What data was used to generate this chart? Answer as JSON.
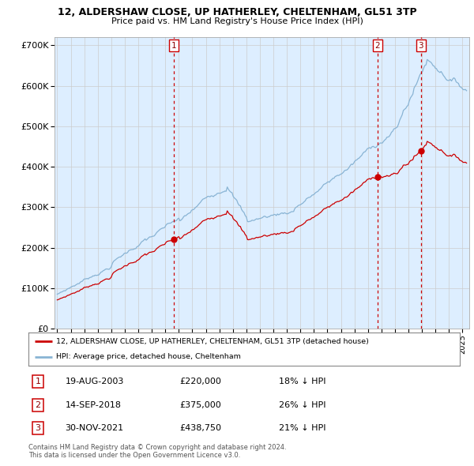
{
  "title_line1": "12, ALDERSHAW CLOSE, UP HATHERLEY, CHELTENHAM, GL51 3TP",
  "title_line2": "Price paid vs. HM Land Registry's House Price Index (HPI)",
  "legend_label_red": "12, ALDERSHAW CLOSE, UP HATHERLEY, CHELTENHAM, GL51 3TP (detached house)",
  "legend_label_blue": "HPI: Average price, detached house, Cheltenham",
  "sales": [
    {
      "label": "1",
      "date": "19-AUG-2003",
      "price": 220000,
      "hpi_pct": "18% ↓ HPI",
      "x_year": 2003.63
    },
    {
      "label": "2",
      "date": "14-SEP-2018",
      "price": 375000,
      "hpi_pct": "26% ↓ HPI",
      "x_year": 2018.71
    },
    {
      "label": "3",
      "date": "30-NOV-2021",
      "price": 438750,
      "hpi_pct": "21% ↓ HPI",
      "x_year": 2021.92
    }
  ],
  "footer_line1": "Contains HM Land Registry data © Crown copyright and database right 2024.",
  "footer_line2": "This data is licensed under the Open Government Licence v3.0.",
  "ylim": [
    0,
    720000
  ],
  "xlim_start": 1994.8,
  "xlim_end": 2025.5,
  "yticks": [
    0,
    100000,
    200000,
    300000,
    400000,
    500000,
    600000,
    700000
  ],
  "ytick_labels": [
    "£0",
    "£100K",
    "£200K",
    "£300K",
    "£400K",
    "£500K",
    "£600K",
    "£700K"
  ],
  "xticks": [
    1995,
    1996,
    1997,
    1998,
    1999,
    2000,
    2001,
    2002,
    2003,
    2004,
    2005,
    2006,
    2007,
    2008,
    2009,
    2010,
    2011,
    2012,
    2013,
    2014,
    2015,
    2016,
    2017,
    2018,
    2019,
    2020,
    2021,
    2022,
    2023,
    2024,
    2025
  ],
  "color_red": "#cc0000",
  "color_blue": "#89b4d4",
  "color_vline": "#cc0000",
  "background_color": "#ffffff",
  "grid_color": "#cccccc",
  "chart_bg": "#ddeeff"
}
